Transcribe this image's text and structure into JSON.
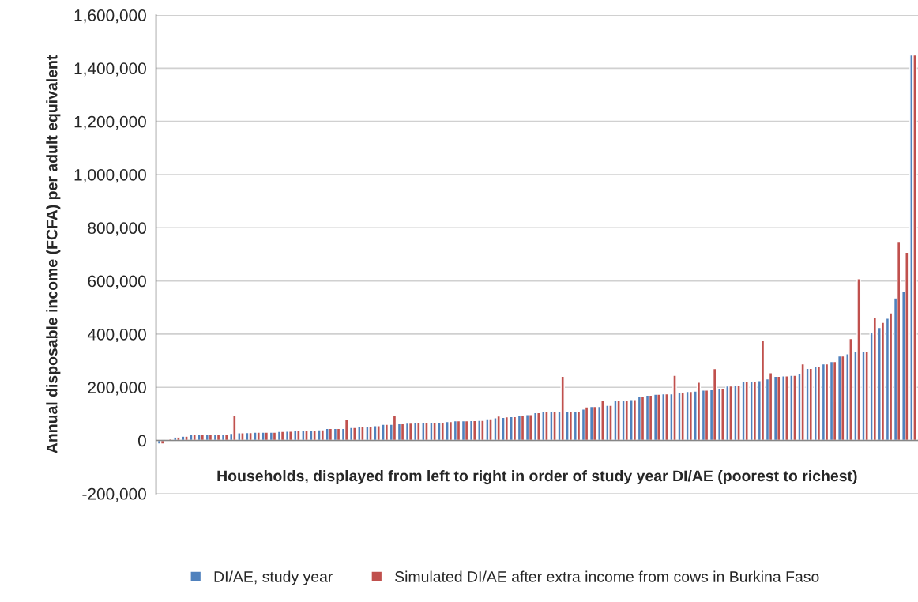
{
  "chart_data": {
    "type": "bar",
    "xlabel": "Households, displayed from left to right in order of study year DI/AE (poorest to richest)",
    "ylabel": "Annual disposable income (FCFA) per adult equivalent",
    "categories": [
      null,
      null,
      null,
      null,
      null,
      null,
      null,
      null,
      null,
      null,
      null,
      null,
      null,
      null,
      null,
      null,
      null,
      null,
      null,
      null,
      null,
      null,
      null,
      null,
      null,
      null,
      null,
      null,
      null,
      null,
      null,
      null,
      null,
      null,
      null,
      null,
      null,
      null,
      null,
      null,
      null,
      null,
      null,
      null,
      null,
      null,
      null,
      null,
      null,
      null,
      null,
      null,
      null,
      null,
      null,
      null,
      null,
      null,
      null,
      null,
      null,
      null,
      null,
      null,
      null,
      null,
      null,
      null,
      null,
      null,
      null,
      null,
      null,
      null,
      null,
      null,
      null,
      null,
      null,
      null,
      null,
      null,
      null,
      null,
      null,
      null,
      null,
      null,
      null,
      null,
      null,
      null,
      null,
      null,
      null
    ],
    "series": [
      {
        "name": "DI/AE, study year",
        "color": "#4f81bd",
        "values": [
          -13000,
          1000,
          11000,
          16000,
          22000,
          22000,
          24000,
          24000,
          24000,
          27000,
          29000,
          30000,
          31000,
          31000,
          31000,
          34000,
          35000,
          37000,
          37000,
          39000,
          40000,
          45000,
          45000,
          45000,
          49000,
          51000,
          53000,
          56000,
          61000,
          61000,
          63000,
          65000,
          66000,
          66000,
          67000,
          68000,
          71000,
          74000,
          74000,
          75000,
          76000,
          82000,
          85000,
          87000,
          90000,
          95000,
          97000,
          105000,
          108000,
          108000,
          108000,
          110000,
          110000,
          118000,
          128000,
          128000,
          132000,
          151000,
          152000,
          154000,
          165000,
          170000,
          174000,
          175000,
          175000,
          180000,
          184000,
          186000,
          189000,
          191000,
          194000,
          205000,
          206000,
          221000,
          222000,
          225000,
          232000,
          241000,
          243000,
          245000,
          250000,
          271000,
          277000,
          288000,
          297000,
          318000,
          326000,
          334000,
          336000,
          406000,
          425000,
          460000,
          536000,
          560000,
          1450000
        ]
      },
      {
        "name": "Simulated DI/AE after extra income from cows in Burkina Faso",
        "color": "#c0504d",
        "values": [
          -13000,
          6000,
          11000,
          16000,
          22000,
          22000,
          24000,
          24000,
          24000,
          96000,
          29000,
          30000,
          31000,
          31000,
          31000,
          34000,
          35000,
          37000,
          37000,
          39000,
          40000,
          45000,
          45000,
          80000,
          49000,
          51000,
          53000,
          56000,
          61000,
          96000,
          63000,
          65000,
          66000,
          66000,
          67000,
          68000,
          71000,
          74000,
          74000,
          75000,
          76000,
          82000,
          92000,
          89000,
          90000,
          95000,
          97000,
          105000,
          108000,
          108000,
          241000,
          110000,
          110000,
          126000,
          128000,
          149000,
          132000,
          151000,
          152000,
          154000,
          165000,
          170000,
          174000,
          175000,
          245000,
          180000,
          184000,
          219000,
          189000,
          270000,
          194000,
          205000,
          206000,
          221000,
          222000,
          375000,
          255000,
          241000,
          243000,
          245000,
          288000,
          271000,
          277000,
          288000,
          297000,
          318000,
          383000,
          608000,
          336000,
          463000,
          444000,
          480000,
          749000,
          708000,
          1450000
        ]
      }
    ],
    "ylim": [
      -200000,
      1600000
    ],
    "yticks": [
      {
        "value": -200000,
        "label": "-200,000"
      },
      {
        "value": 0,
        "label": "0"
      },
      {
        "value": 200000,
        "label": "200,000"
      },
      {
        "value": 400000,
        "label": "400,000"
      },
      {
        "value": 600000,
        "label": "600,000"
      },
      {
        "value": 800000,
        "label": "800,000"
      },
      {
        "value": 1000000,
        "label": "1,000,000"
      },
      {
        "value": 1200000,
        "label": "1,200,000"
      },
      {
        "value": 1400000,
        "label": "1,400,000"
      },
      {
        "value": 1600000,
        "label": "1,600,000"
      }
    ],
    "grid": "y",
    "legend": "bottom"
  }
}
